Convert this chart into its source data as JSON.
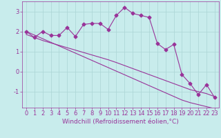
{
  "xlabel": "Windchill (Refroidissement éolien,°C)",
  "x_data": [
    0,
    1,
    2,
    3,
    4,
    5,
    6,
    7,
    8,
    9,
    10,
    11,
    12,
    13,
    14,
    15,
    16,
    17,
    18,
    19,
    20,
    21,
    22,
    23
  ],
  "y_main": [
    2.0,
    1.7,
    2.0,
    1.8,
    1.8,
    2.2,
    1.75,
    2.35,
    2.4,
    2.4,
    2.1,
    2.8,
    3.2,
    2.9,
    2.8,
    2.7,
    1.4,
    1.1,
    1.35,
    -0.15,
    -0.6,
    -1.15,
    -0.65,
    -1.3
  ],
  "y_line1": [
    2.0,
    1.82,
    1.64,
    1.46,
    1.28,
    1.1,
    0.92,
    0.74,
    0.56,
    0.38,
    0.2,
    0.02,
    -0.16,
    -0.34,
    -0.52,
    -0.7,
    -0.88,
    -1.06,
    -1.24,
    -1.42,
    -1.55,
    -1.65,
    -1.75,
    -1.85
  ],
  "y_line2": [
    1.85,
    1.7,
    1.55,
    1.43,
    1.31,
    1.19,
    1.07,
    0.95,
    0.83,
    0.71,
    0.59,
    0.45,
    0.3,
    0.15,
    0.0,
    -0.15,
    -0.3,
    -0.45,
    -0.6,
    -0.75,
    -0.9,
    -1.0,
    -1.1,
    -1.25
  ],
  "line_color": "#993399",
  "bg_color": "#c8ecec",
  "plot_bg": "#c8ecec",
  "grid_color": "#aad4d4",
  "ylim": [
    -1.8,
    3.5
  ],
  "xlim": [
    -0.5,
    23.5
  ],
  "yticks": [
    -1,
    0,
    1,
    2,
    3
  ],
  "xticks": [
    0,
    1,
    2,
    3,
    4,
    5,
    6,
    7,
    8,
    9,
    10,
    11,
    12,
    13,
    14,
    15,
    16,
    17,
    18,
    19,
    20,
    21,
    22,
    23
  ],
  "tick_fontsize": 6,
  "xlabel_fontsize": 6.5,
  "marker": "D",
  "marker_size": 2.5
}
